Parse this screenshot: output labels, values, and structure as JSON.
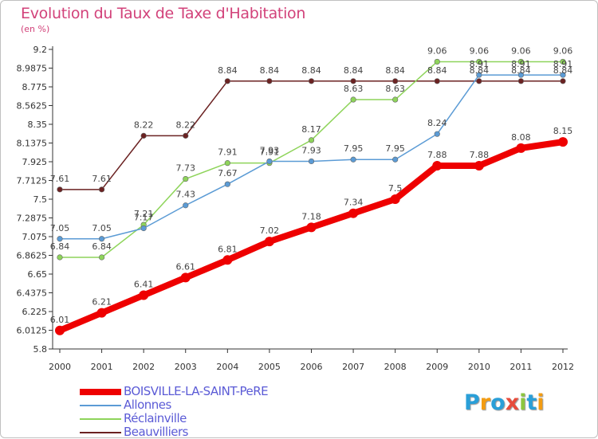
{
  "header": {
    "title": "Evolution du Taux de Taxe d'Habitation",
    "unit": "(en %)"
  },
  "logo": {
    "letters": [
      "P",
      "r",
      "o",
      "x",
      "i",
      "t",
      "i"
    ],
    "colors": [
      "#2a9fd8",
      "#f39c12",
      "#2a9fd8",
      "#e74c3c",
      "#8cc63f",
      "#2a9fd8",
      "#f39c12"
    ]
  },
  "chart_data": {
    "type": "line",
    "x": [
      "2000",
      "2001",
      "2002",
      "2003",
      "2004",
      "2005",
      "2006",
      "2007",
      "2008",
      "2009",
      "2010",
      "2011",
      "2012"
    ],
    "yticks": [
      "5.8",
      "6.0125",
      "6.225",
      "6.4375",
      "6.65",
      "6.8625",
      "7.075",
      "7.2875",
      "7.5",
      "7.7125",
      "7.925",
      "8.1375",
      "8.35",
      "8.5625",
      "8.775",
      "8.9875",
      "9.2"
    ],
    "ylim": [
      5.8,
      9.2
    ],
    "grid": false,
    "legend_position": "bottom-left",
    "series": [
      {
        "name": "BOISVILLE-LA-SAINT-PeRE",
        "color": "#ee0000",
        "values": [
          6.01,
          6.21,
          6.41,
          6.61,
          6.81,
          7.02,
          7.18,
          7.34,
          7.5,
          7.88,
          7.88,
          8.08,
          8.15
        ],
        "labels": [
          "6.01",
          "6.21",
          "6.41",
          "6.61",
          "6.81",
          "7.02",
          "7.18",
          "7.34",
          "7.5",
          "7.88",
          "7.88",
          "8.08",
          "8.15"
        ]
      },
      {
        "name": "Allonnes",
        "color": "#5b9bd5",
        "values": [
          7.05,
          7.05,
          7.17,
          7.43,
          7.67,
          7.93,
          7.93,
          7.95,
          7.95,
          8.24,
          8.91,
          8.91,
          8.91
        ],
        "labels": [
          "7.05",
          "7.05",
          "7.17",
          "7.43",
          "7.67",
          "7.93",
          "7.93",
          "7.95",
          "7.95",
          "8.24",
          "8.91",
          "8.91",
          "8.91"
        ]
      },
      {
        "name": "Réclainville",
        "color": "#8ed45a",
        "values": [
          6.84,
          6.84,
          7.21,
          7.73,
          7.91,
          7.91,
          8.17,
          8.63,
          8.63,
          9.06,
          9.06,
          9.06,
          9.06
        ],
        "labels": [
          "6.84",
          "6.84",
          "7.21",
          "7.73",
          "7.91",
          "7.91",
          "8.17",
          "8.63",
          "8.63",
          "9.06",
          "9.06",
          "9.06",
          "9.06"
        ]
      },
      {
        "name": "Beauvilliers",
        "color": "#6b2222",
        "values": [
          7.61,
          7.61,
          8.22,
          8.22,
          8.84,
          8.84,
          8.84,
          8.84,
          8.84,
          8.84,
          8.84,
          8.84,
          8.84
        ],
        "labels": [
          "7.61",
          "7.61",
          "8.22",
          "8.22",
          "8.84",
          "8.84",
          "8.84",
          "8.84",
          "8.84",
          "8.84",
          "8.84",
          "8.84",
          "8.84"
        ]
      }
    ]
  }
}
